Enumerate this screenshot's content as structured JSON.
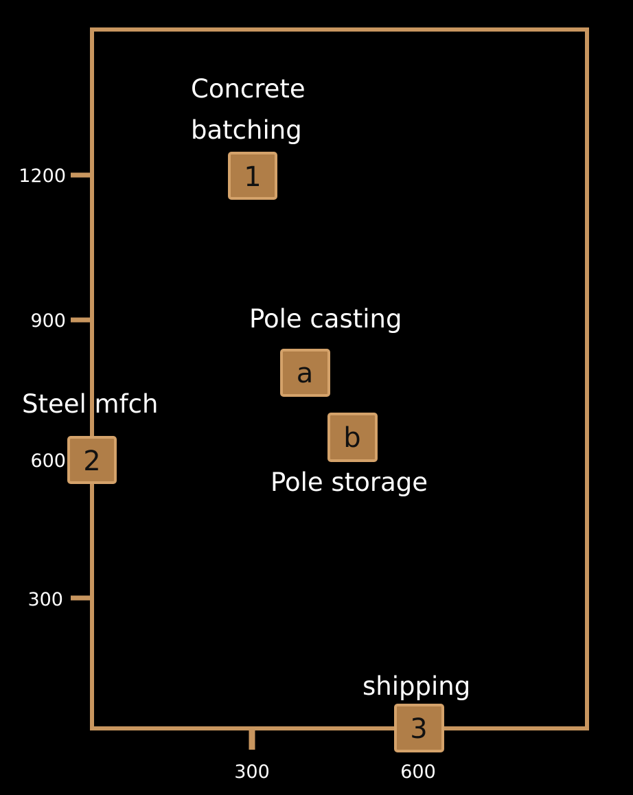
{
  "colors": {
    "background": "#000000",
    "frame": "#c8965f",
    "marker_fill": "#b07e48",
    "marker_border": "#d4a26a",
    "marker_text": "#111111",
    "text": "#ffffff"
  },
  "axes": {
    "y_ticks": [
      "1200",
      "900",
      "600",
      "300"
    ],
    "x_ticks": [
      "300",
      "600"
    ]
  },
  "labels": {
    "concrete_line1": "Concrete",
    "concrete_line2": "batching",
    "pole_casting": "Pole casting",
    "steel_mfch": "Steel mfch",
    "pole_storage": "Pole storage",
    "shipping": "shipping"
  },
  "markers": {
    "m1": "1",
    "ma": "a",
    "mb": "b",
    "m2": "2",
    "m3": "3"
  }
}
